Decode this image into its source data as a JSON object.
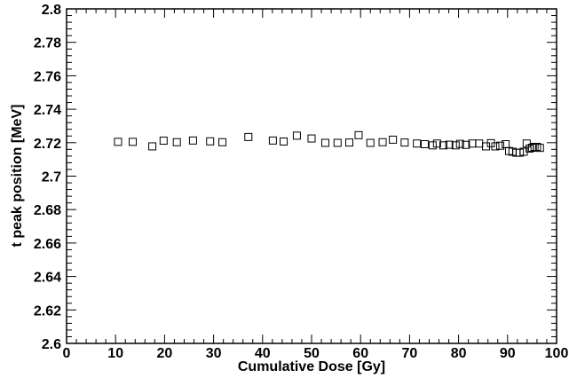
{
  "chart_data": {
    "type": "scatter",
    "xlabel": "Cumulative Dose [Gy]",
    "ylabel": "t peak position [MeV]",
    "xlim": [
      0,
      100
    ],
    "ylim": [
      2.6,
      2.8
    ],
    "x_ticks": [
      "0",
      "10",
      "20",
      "30",
      "40",
      "50",
      "60",
      "70",
      "80",
      "90",
      "100"
    ],
    "y_ticks": [
      "2.6",
      "2.62",
      "2.64",
      "2.66",
      "2.68",
      "2.7",
      "2.72",
      "2.74",
      "2.76",
      "2.78",
      "2.8"
    ],
    "grid": false,
    "marker": "open-square",
    "series": [
      {
        "x": [
          10.5,
          13.5,
          17.5,
          19.8,
          22.5,
          25.8,
          29.3,
          31.8,
          37.1,
          42.1,
          44.3,
          47.0,
          50.0,
          52.8,
          55.3,
          57.7,
          59.6,
          62.0,
          64.5,
          66.6,
          69.0,
          71.5,
          73.1,
          74.7,
          75.6,
          76.9,
          78.1,
          79.4,
          80.3,
          81.5,
          82.8,
          84.2,
          85.6,
          86.6,
          87.5,
          88.5,
          89.6,
          90.3,
          91.0,
          91.8,
          92.5,
          93.3,
          93.9,
          94.5,
          95.0,
          95.5,
          96.0,
          96.6
        ],
        "y": [
          2.7205,
          2.7205,
          2.7178,
          2.7212,
          2.7203,
          2.7213,
          2.7208,
          2.7203,
          2.7234,
          2.7213,
          2.7207,
          2.7242,
          2.7225,
          2.7199,
          2.7199,
          2.7201,
          2.7245,
          2.7199,
          2.7203,
          2.7218,
          2.7201,
          2.7195,
          2.7191,
          2.7184,
          2.7195,
          2.7184,
          2.7188,
          2.7184,
          2.7193,
          2.7187,
          2.7195,
          2.7195,
          2.7178,
          2.7197,
          2.7178,
          2.7182,
          2.7191,
          2.715,
          2.7146,
          2.714,
          2.714,
          2.7146,
          2.7195,
          2.7165,
          2.717,
          2.7175,
          2.7175,
          2.7169
        ]
      }
    ]
  }
}
